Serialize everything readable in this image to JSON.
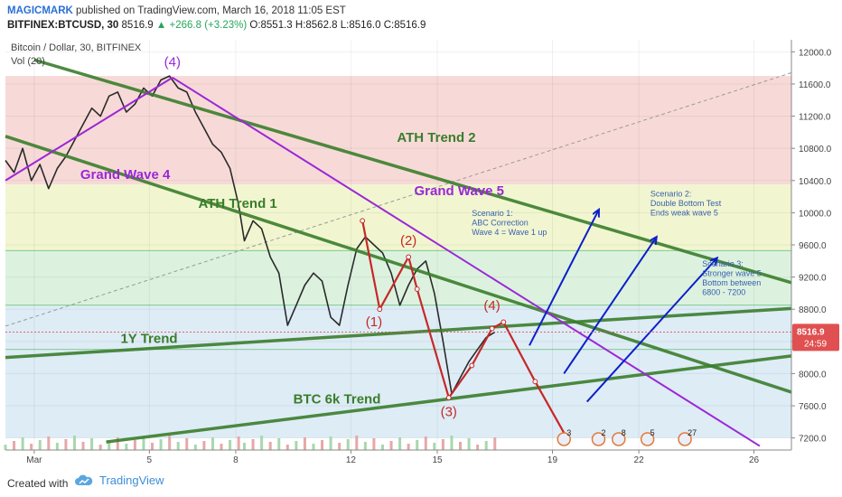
{
  "header": {
    "author": "MAGICMARK",
    "published_text": "published on TradingView.com, March 16, 2018 11:05 EST",
    "symbol": "BITFINEX:BTCUSD, 30",
    "last": "8516.9",
    "change": "▲ +266.8 (+3.23%)",
    "ohlc": "O:8551.3 H:8562.8 L:8516.0 C:8516.9"
  },
  "footer": {
    "created_with": "Created with",
    "brand": "TradingView"
  },
  "colors": {
    "red_zone": "#f6d3d1",
    "yellow_zone": "#eef4c8",
    "green_zone": "#d6f0d9",
    "blue_zone": "#d8e9f4",
    "trend": "#3a7d2b",
    "wave": "#9c27d6",
    "scenario": "#0d1fc9",
    "abc": "#c62828"
  },
  "chart_data": {
    "type": "line",
    "title": "Bitcoin / Dollar, 30, BITFINEX",
    "subtitle": "Vol (20)",
    "y_ticks": [
      7200,
      7600,
      8000,
      8400,
      8800,
      9200,
      9600,
      10000,
      10400,
      10800,
      11200,
      11600,
      12000
    ],
    "y_tick_labels": [
      "7200.0",
      "7600.0",
      "8000.0",
      "8400.0",
      "8800.0",
      "9200.0",
      "9600.0",
      "10000.0",
      "10400.0",
      "10800.0",
      "11200.0",
      "11600.0",
      "12000.0"
    ],
    "ylim": [
      7050,
      12150
    ],
    "x_ticks": [
      {
        "x": 1,
        "label": "Mar"
      },
      {
        "x": 5,
        "label": "5"
      },
      {
        "x": 8,
        "label": "8"
      },
      {
        "x": 12,
        "label": "12"
      },
      {
        "x": 15,
        "label": "15"
      },
      {
        "x": 19,
        "label": "19"
      },
      {
        "x": 22,
        "label": "22"
      },
      {
        "x": 26,
        "label": "26"
      }
    ],
    "xlim": [
      0,
      27.3
    ],
    "price_label": "8516.9",
    "countdown": "24:59",
    "zones": [
      {
        "from": 10350,
        "to": 11700,
        "color": "#f6d3d1"
      },
      {
        "from": 9530,
        "to": 10350,
        "color": "#eef4c8"
      },
      {
        "from": 8850,
        "to": 9530,
        "color": "#d6f0d9"
      },
      {
        "from": 7200,
        "to": 8850,
        "color": "#d8e9f4"
      }
    ],
    "zone_lines": [
      9530,
      8850,
      8300
    ],
    "price_series": [
      [
        0.0,
        10650
      ],
      [
        0.3,
        10500
      ],
      [
        0.6,
        10800
      ],
      [
        0.9,
        10400
      ],
      [
        1.2,
        10600
      ],
      [
        1.5,
        10300
      ],
      [
        1.8,
        10550
      ],
      [
        2.1,
        10700
      ],
      [
        2.4,
        10900
      ],
      [
        2.7,
        11100
      ],
      [
        3.0,
        11300
      ],
      [
        3.3,
        11200
      ],
      [
        3.6,
        11450
      ],
      [
        3.9,
        11500
      ],
      [
        4.2,
        11250
      ],
      [
        4.5,
        11350
      ],
      [
        4.8,
        11550
      ],
      [
        5.1,
        11450
      ],
      [
        5.4,
        11650
      ],
      [
        5.7,
        11700
      ],
      [
        6.0,
        11550
      ],
      [
        6.3,
        11500
      ],
      [
        6.6,
        11250
      ],
      [
        6.9,
        11050
      ],
      [
        7.2,
        10850
      ],
      [
        7.5,
        10750
      ],
      [
        7.8,
        10550
      ],
      [
        8.1,
        10100
      ],
      [
        8.3,
        9650
      ],
      [
        8.6,
        9900
      ],
      [
        8.9,
        9800
      ],
      [
        9.2,
        9450
      ],
      [
        9.5,
        9250
      ],
      [
        9.8,
        8600
      ],
      [
        10.1,
        8850
      ],
      [
        10.4,
        9100
      ],
      [
        10.7,
        9250
      ],
      [
        11.0,
        9150
      ],
      [
        11.3,
        8700
      ],
      [
        11.6,
        8600
      ],
      [
        11.9,
        9100
      ],
      [
        12.2,
        9550
      ],
      [
        12.5,
        9700
      ],
      [
        12.8,
        9600
      ],
      [
        13.1,
        9500
      ],
      [
        13.4,
        9250
      ],
      [
        13.7,
        8850
      ],
      [
        14.0,
        9100
      ],
      [
        14.3,
        9300
      ],
      [
        14.6,
        9400
      ],
      [
        14.9,
        9000
      ],
      [
        15.2,
        8400
      ],
      [
        15.5,
        7750
      ],
      [
        15.8,
        7950
      ],
      [
        16.1,
        8150
      ],
      [
        16.4,
        8300
      ],
      [
        16.7,
        8450
      ],
      [
        17.0,
        8516.9
      ]
    ],
    "trend_lines": [
      {
        "name": "ATH Trend 2",
        "p1": [
          1.0,
          11900
        ],
        "p2": [
          27.3,
          9130
        ]
      },
      {
        "name": "ATH Trend 1",
        "p1": [
          0.0,
          10950
        ],
        "p2": [
          27.3,
          7770
        ]
      },
      {
        "name": "1Y Trend",
        "p1": [
          0.0,
          8200
        ],
        "p2": [
          27.3,
          8810
        ]
      },
      {
        "name": "BTC 6k Trend",
        "p1": [
          3.5,
          7150
        ],
        "p2": [
          27.3,
          8220
        ]
      }
    ],
    "wave_lines": [
      {
        "name": "Grand Wave 4",
        "p1": [
          0.0,
          10400
        ],
        "p2": [
          5.8,
          11680
        ]
      },
      {
        "name": "Grand Wave 5",
        "p1": [
          5.8,
          11680
        ],
        "p2": [
          26.2,
          7100
        ]
      }
    ],
    "resistance_dashed": {
      "p1": [
        0.0,
        8590
      ],
      "p2": [
        27.3,
        11740
      ]
    },
    "abc_path": [
      [
        12.4,
        9900
      ],
      [
        13.0,
        8800
      ],
      [
        14.0,
        9450
      ],
      [
        14.3,
        9050
      ],
      [
        15.4,
        7700
      ],
      [
        16.2,
        8100
      ],
      [
        16.9,
        8560
      ],
      [
        17.3,
        8640
      ],
      [
        18.4,
        7900
      ],
      [
        19.5,
        7200
      ]
    ],
    "wave_labels": [
      {
        "label": "(4)",
        "x": 5.8,
        "y": 11820,
        "color": "#9c27d6"
      },
      {
        "label": "(2)",
        "x": 14.0,
        "y": 9600,
        "color": "#c62828"
      },
      {
        "label": "(1)",
        "x": 12.8,
        "y": 8590,
        "color": "#c62828"
      },
      {
        "label": "(3)",
        "x": 15.4,
        "y": 7470,
        "color": "#c62828"
      },
      {
        "label": "(4)",
        "x": 16.9,
        "y": 8790,
        "color": "#c62828"
      }
    ],
    "scenario_arrows": [
      {
        "p1": [
          18.2,
          8350
        ],
        "p2": [
          20.6,
          10030
        ]
      },
      {
        "p1": [
          19.4,
          8000
        ],
        "p2": [
          22.6,
          9690
        ]
      },
      {
        "p1": [
          20.2,
          7650
        ],
        "p2": [
          24.7,
          9430
        ]
      }
    ],
    "text_annotations": [
      {
        "id": "ath2",
        "text": "ATH Trend 2",
        "x": 13.6,
        "y": 10880,
        "color": "#3a7d2b"
      },
      {
        "id": "ath1",
        "text": "ATH Trend 1",
        "x": 6.7,
        "y": 10060,
        "color": "#3a7d2b"
      },
      {
        "id": "gw4",
        "text": "Grand Wave 4",
        "x": 2.6,
        "y": 10420,
        "color": "#9c27d6"
      },
      {
        "id": "gw5",
        "text": "Grand Wave 5",
        "x": 14.2,
        "y": 10220,
        "color": "#9c27d6"
      },
      {
        "id": "oney",
        "text": "1Y Trend",
        "x": 4.0,
        "y": 8380,
        "color": "#3a7d2b"
      },
      {
        "id": "btc6k",
        "text": "BTC 6k Trend",
        "x": 10.0,
        "y": 7630,
        "color": "#3a7d2b"
      }
    ],
    "scenarios": [
      {
        "lines": [
          "Scenario 1:",
          "ABC Correction",
          "Wave 4 = Wave 1 up"
        ],
        "x": 16.2,
        "y": 9960
      },
      {
        "lines": [
          "Scenario 2:",
          "Double Bottom Test",
          "Ends weak wave 5"
        ],
        "x": 22.4,
        "y": 10200
      },
      {
        "lines": [
          "Scenario 3:",
          "Stronger wave 5",
          "Bottom between",
          "6800 - 7200"
        ],
        "x": 24.2,
        "y": 9330
      }
    ],
    "bottom_badges": [
      {
        "text": "3",
        "x": 19.4
      },
      {
        "text": "2",
        "x": 20.6
      },
      {
        "text": "8",
        "x": 21.3
      },
      {
        "text": "5",
        "x": 22.3
      },
      {
        "text": "27",
        "x": 23.6
      }
    ]
  }
}
